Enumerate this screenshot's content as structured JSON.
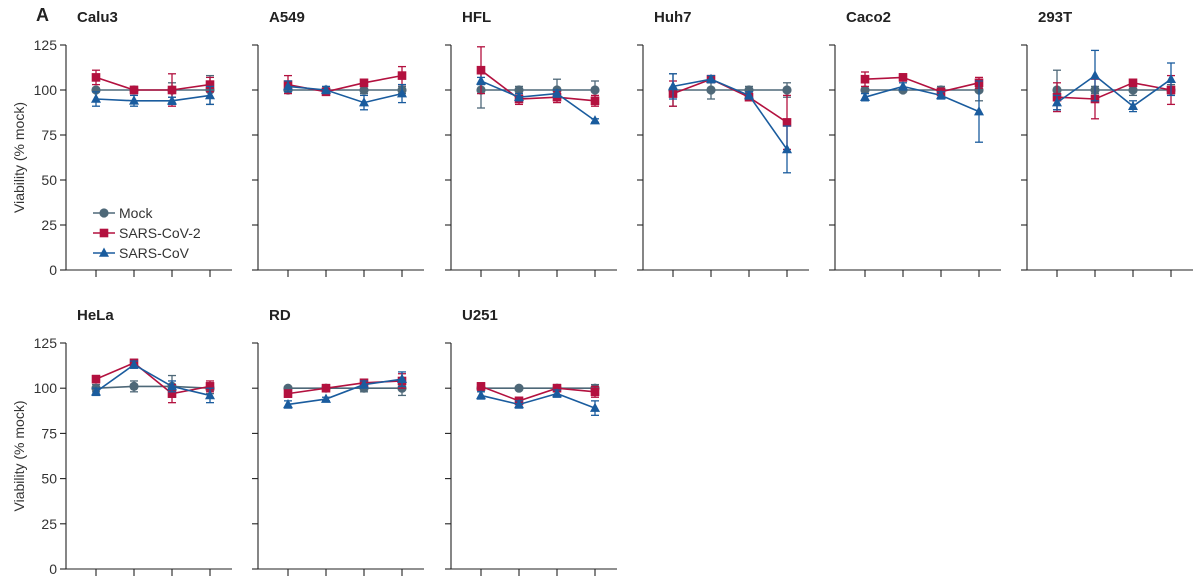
{
  "figure_label": "A",
  "colors": {
    "Mock": "#4e6878",
    "SARS-CoV-2": "#b3113f",
    "SARS-CoV": "#1a5c9e"
  },
  "chart_data": {
    "type": "line",
    "ylabel": "Viability (% mock)",
    "ylim": [
      0,
      125
    ],
    "yticks": [
      0,
      25,
      50,
      75,
      100,
      125
    ],
    "x": [
      1,
      2,
      3,
      4
    ],
    "legend": {
      "placement": "lower-left of first panel",
      "entries": [
        "Mock",
        "SARS-CoV-2",
        "SARS-CoV"
      ]
    },
    "markers": {
      "Mock": "circle",
      "SARS-CoV-2": "square",
      "SARS-CoV": "triangle"
    },
    "panels": [
      {
        "title": "Calu3",
        "series": [
          {
            "name": "Mock",
            "values": [
              100,
              100,
              100,
              100
            ],
            "err": [
              0,
              0,
              4,
              8
            ]
          },
          {
            "name": "SARS-CoV-2",
            "values": [
              107,
              100,
              100,
              103
            ],
            "err": [
              4,
              2,
              9,
              4
            ]
          },
          {
            "name": "SARS-CoV",
            "values": [
              95,
              94,
              94,
              97
            ],
            "err": [
              4,
              3,
              2,
              5
            ]
          }
        ]
      },
      {
        "title": "A549",
        "series": [
          {
            "name": "Mock",
            "values": [
              100,
              100,
              100,
              100
            ],
            "err": [
              0,
              0,
              2,
              2
            ]
          },
          {
            "name": "SARS-CoV-2",
            "values": [
              103,
              99,
              104,
              108
            ],
            "err": [
              5,
              2,
              2,
              5
            ]
          },
          {
            "name": "SARS-CoV",
            "values": [
              102,
              100,
              93,
              98
            ],
            "err": [
              3,
              2,
              4,
              5
            ]
          }
        ]
      },
      {
        "title": "HFL",
        "series": [
          {
            "name": "Mock",
            "values": [
              100,
              100,
              100,
              100
            ],
            "err": [
              10,
              2,
              6,
              5
            ]
          },
          {
            "name": "SARS-CoV-2",
            "values": [
              111,
              95,
              96,
              94
            ],
            "err": [
              13,
              3,
              3,
              3
            ]
          },
          {
            "name": "SARS-CoV",
            "values": [
              105,
              96,
              98,
              83
            ],
            "err": [
              2,
              2,
              2,
              1
            ]
          }
        ]
      },
      {
        "title": "Huh7",
        "series": [
          {
            "name": "Mock",
            "values": [
              100,
              100,
              100,
              100
            ],
            "err": [
              9,
              5,
              2,
              4
            ]
          },
          {
            "name": "SARS-CoV-2",
            "values": [
              98,
              106,
              96,
              82
            ],
            "err": [
              7,
              2,
              2,
              15
            ]
          },
          {
            "name": "SARS-CoV",
            "values": [
              102,
              106,
              97,
              67
            ],
            "err": [
              7,
              2,
              2,
              13
            ]
          }
        ]
      },
      {
        "title": "Caco2",
        "series": [
          {
            "name": "Mock",
            "values": [
              100,
              100,
              100,
              100
            ],
            "err": [
              0,
              0,
              2,
              6
            ]
          },
          {
            "name": "SARS-CoV-2",
            "values": [
              106,
              107,
              99,
              104
            ],
            "err": [
              4,
              2,
              2,
              3
            ]
          },
          {
            "name": "SARS-CoV",
            "values": [
              96,
              102,
              97,
              88
            ],
            "err": [
              2,
              2,
              2,
              17
            ]
          }
        ]
      },
      {
        "title": "293T",
        "series": [
          {
            "name": "Mock",
            "values": [
              100,
              100,
              100,
              100
            ],
            "err": [
              11,
              2,
              3,
              3
            ]
          },
          {
            "name": "SARS-CoV-2",
            "values": [
              96,
              95,
              104,
              100
            ],
            "err": [
              8,
              11,
              2,
              8
            ]
          },
          {
            "name": "SARS-CoV",
            "values": [
              93,
              108,
              91,
              106
            ],
            "err": [
              4,
              14,
              3,
              9
            ]
          }
        ]
      },
      {
        "title": "HeLa",
        "series": [
          {
            "name": "Mock",
            "values": [
              100,
              101,
              101,
              100
            ],
            "err": [
              2,
              3,
              6,
              3
            ]
          },
          {
            "name": "SARS-CoV-2",
            "values": [
              105,
              114,
              97,
              101
            ],
            "err": [
              2,
              2,
              5,
              3
            ]
          },
          {
            "name": "SARS-CoV",
            "values": [
              98,
              113,
              101,
              96
            ],
            "err": [
              2,
              2,
              3,
              4
            ]
          }
        ]
      },
      {
        "title": "RD",
        "series": [
          {
            "name": "Mock",
            "values": [
              100,
              100,
              100,
              100
            ],
            "err": [
              0,
              0,
              2,
              4
            ]
          },
          {
            "name": "SARS-CoV-2",
            "values": [
              97,
              100,
              103,
              104
            ],
            "err": [
              2,
              2,
              2,
              4
            ]
          },
          {
            "name": "SARS-CoV",
            "values": [
              91,
              94,
              102,
              105
            ],
            "err": [
              2,
              1,
              2,
              4
            ]
          }
        ]
      },
      {
        "title": "U251",
        "series": [
          {
            "name": "Mock",
            "values": [
              100,
              100,
              100,
              100
            ],
            "err": [
              0,
              0,
              2,
              2
            ]
          },
          {
            "name": "SARS-CoV-2",
            "values": [
              101,
              93,
              100,
              98
            ],
            "err": [
              2,
              2,
              2,
              3
            ]
          },
          {
            "name": "SARS-CoV",
            "values": [
              96,
              91,
              97,
              89
            ],
            "err": [
              2,
              2,
              2,
              4
            ]
          }
        ]
      }
    ]
  }
}
